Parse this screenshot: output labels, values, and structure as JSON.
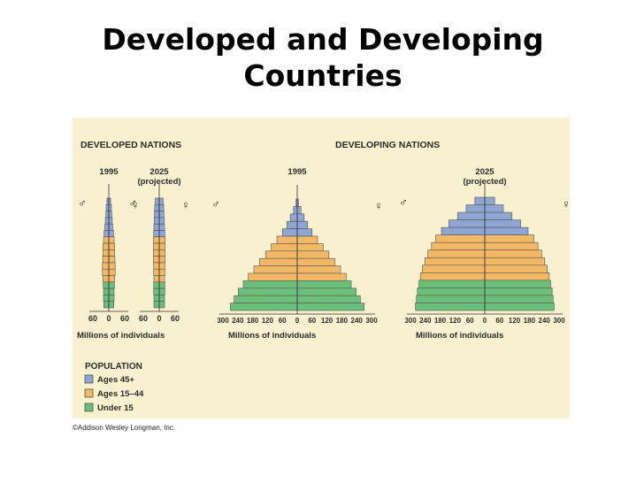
{
  "slide": {
    "title_line1": "Developed and Developing",
    "title_line2": "Countries"
  },
  "credit": "©Addison Wesley Longman, Inc.",
  "colors": {
    "ages_45_plus": "#8fa6d4",
    "ages_15_44": "#f2b866",
    "under_15": "#6cbf7a",
    "background": "#f9f0cf"
  },
  "chart_data": {
    "type": "population pyramid",
    "section_labels": [
      "DEVELOPED NATIONS",
      "DEVELOPING NATIONS"
    ],
    "sex_symbols": {
      "male": "♂",
      "female": "♀"
    },
    "legend": {
      "title": "POPULATION",
      "entries": [
        {
          "label": "Ages 45+",
          "color": "#8fa6d4"
        },
        {
          "label": "Ages 15–44",
          "color": "#f2b866"
        },
        {
          "label": "Under 15",
          "color": "#6cbf7a"
        }
      ]
    },
    "pyramids": [
      {
        "group": "DEVELOPED NATIONS",
        "year": "1995",
        "subtitle": "",
        "xlabel": "Millions of individuals",
        "ticks": [
          "60",
          "0",
          "60"
        ],
        "xlim": 60,
        "bars_top_to_bottom": [
          7,
          10,
          11,
          13,
          15,
          18,
          20,
          22,
          22,
          23,
          24,
          24,
          22,
          21,
          20,
          20,
          19
        ]
      },
      {
        "group": "DEVELOPED NATIONS",
        "year": "2025",
        "subtitle": "(projected)",
        "xlabel": "",
        "ticks": [
          "60",
          "0",
          "60"
        ],
        "xlim": 60,
        "bars_top_to_bottom": [
          15,
          17,
          18,
          19,
          20,
          21,
          22,
          22,
          22,
          22,
          21,
          21,
          20,
          21,
          21,
          20,
          20
        ]
      },
      {
        "group": "DEVELOPING NATIONS",
        "year": "1995",
        "subtitle": "",
        "xlabel": "Millions of individuals",
        "ticks": [
          "300",
          "240",
          "180",
          "120",
          "60",
          "0",
          "60",
          "120",
          "180",
          "240",
          "300"
        ],
        "xlim": 300,
        "bars_top_to_bottom": [
          5,
          15,
          28,
          42,
          60,
          82,
          105,
          128,
          152,
          175,
          198,
          218,
          238,
          255,
          270
        ]
      },
      {
        "group": "DEVELOPING NATIONS",
        "year": "2025",
        "subtitle": "(projected)",
        "xlabel": "Millions of individuals",
        "ticks": [
          "300",
          "240",
          "180",
          "120",
          "60",
          "0",
          "60",
          "120",
          "180",
          "240",
          "300"
        ],
        "xlim": 300,
        "bars_top_to_bottom": [
          40,
          75,
          110,
          145,
          175,
          198,
          215,
          230,
          242,
          252,
          260,
          266,
          272,
          276,
          280
        ]
      }
    ]
  }
}
